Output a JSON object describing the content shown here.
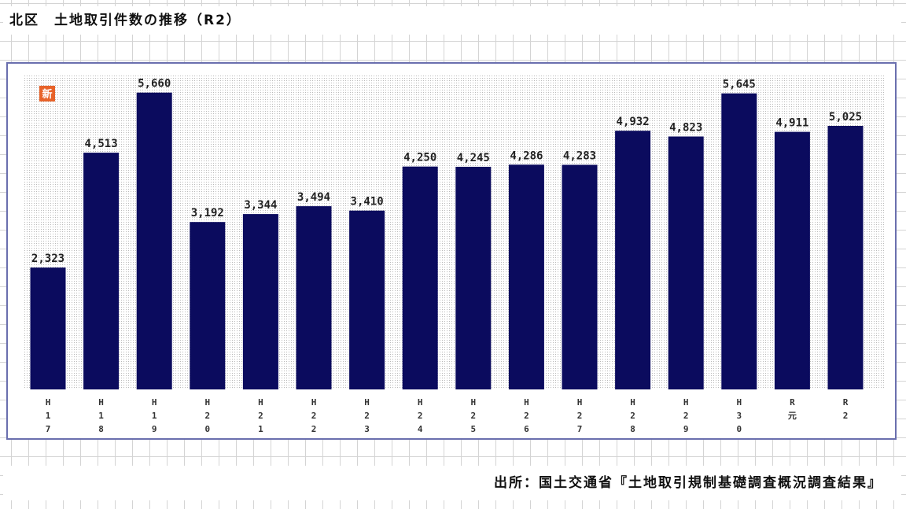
{
  "header": {
    "title": "北区　土地取引件数の推移（R2）"
  },
  "footer": {
    "source": "出所：国土交通省『土地取引規制基礎調査概況調査結果』"
  },
  "badge": {
    "text": "新"
  },
  "colors": {
    "bar": "#0b0b5e",
    "frame": "#6a6fae",
    "badge": "#e8632a",
    "plot_dots": "#b9b9b9"
  },
  "chart_data": {
    "type": "bar",
    "categories": [
      "H17",
      "H18",
      "H19",
      "H20",
      "H21",
      "H22",
      "H23",
      "H24",
      "H25",
      "H26",
      "H27",
      "H28",
      "H29",
      "H30",
      "R元",
      "R2"
    ],
    "tick_labels": [
      [
        "H",
        "1",
        "7"
      ],
      [
        "H",
        "1",
        "8"
      ],
      [
        "H",
        "1",
        "9"
      ],
      [
        "H",
        "2",
        "0"
      ],
      [
        "H",
        "2",
        "1"
      ],
      [
        "H",
        "2",
        "2"
      ],
      [
        "H",
        "2",
        "3"
      ],
      [
        "H",
        "2",
        "4"
      ],
      [
        "H",
        "2",
        "5"
      ],
      [
        "H",
        "2",
        "6"
      ],
      [
        "H",
        "2",
        "7"
      ],
      [
        "H",
        "2",
        "8"
      ],
      [
        "H",
        "2",
        "9"
      ],
      [
        "H",
        "3",
        "0"
      ],
      [
        "R",
        "元"
      ],
      [
        "R",
        "2"
      ]
    ],
    "values": [
      2323,
      4513,
      5660,
      3192,
      3344,
      3494,
      3410,
      4250,
      4245,
      4286,
      4283,
      4932,
      4823,
      5645,
      4911,
      5025
    ],
    "data_labels": [
      "2,323",
      "4,513",
      "5,660",
      "3,192",
      "3,344",
      "3,494",
      "3,410",
      "4,250",
      "4,245",
      "4,286",
      "4,283",
      "4,932",
      "4,823",
      "5,645",
      "4,911",
      "5,025"
    ],
    "ylim": [
      0,
      6000
    ],
    "xlabel": "",
    "ylabel": "",
    "grid": false,
    "legend": "none"
  }
}
